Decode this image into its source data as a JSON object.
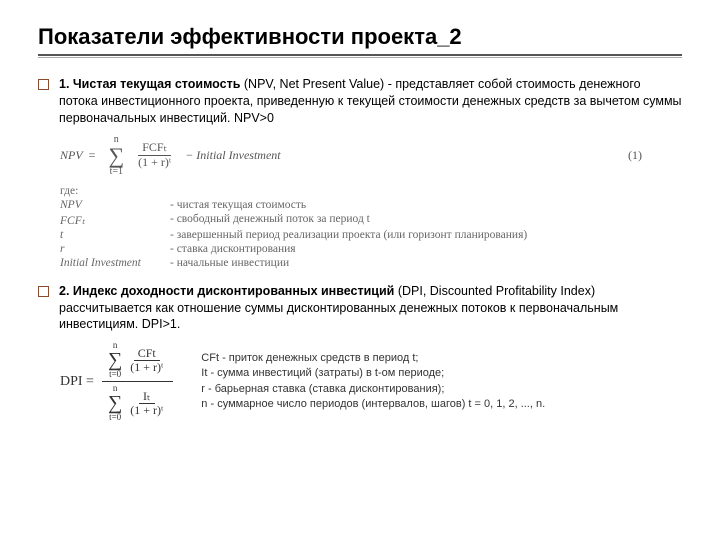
{
  "title": "Показатели эффективности проекта_2",
  "section1": {
    "lead": "1. Чистая текущая стоимость",
    "paren": " (NPV, Net Present Value) - представляет собой стоимость денежного потока инвестиционного проекта, приведенную к текущей стоимости денежных средств за вычетом суммы первоначальных инвестиций. NPV>0",
    "formula": {
      "lhs": "NPV",
      "sum_top": "n",
      "sum_bot": "t=1",
      "frac_num": "FCFₜ",
      "frac_den": "(1 + r)ᵗ",
      "tail": " − Initial Investment",
      "eqnum": "(1)"
    },
    "legend_header": "где:",
    "legend": [
      {
        "k": "NPV",
        "v": " - чистая текущая стоимость"
      },
      {
        "k": "FCFₜ",
        "v": " - свободный денежный поток за период t"
      },
      {
        "k": "t",
        "v": " - завершенный период реализации проекта (или горизонт планирования)"
      },
      {
        "k": "r",
        "v": " - ставка дисконтирования"
      },
      {
        "k": "Initial Investment",
        "v": " - начальные инвестиции"
      }
    ]
  },
  "section2": {
    "lead": "2. Индекс доходности дисконтированных инвестиций",
    "paren": " (DPI, Discounted Profitability Index) рассчитывается как отношение суммы дисконтированных денежных потоков к первоначальным инвестициям. DPI>1.",
    "formula": {
      "lhs": "DPI = ",
      "top": {
        "sum_top": "n",
        "sum_bot": "t=0",
        "frac_num": "CFt",
        "frac_den": "(1 + r)ᵗ"
      },
      "bot": {
        "sum_top": "n",
        "sum_bot": "t=0",
        "frac_num": "Iₜ",
        "frac_den": "(1 + r)ᵗ"
      }
    },
    "legend": [
      "CFt - приток денежных средств в период t;",
      "It - сумма инвестиций (затраты) в t-ом периоде;",
      "r - барьерная ставка (ставка дисконтирования);",
      "n - суммарное число периодов (интервалов, шагов) t = 0, 1, 2, ..., n."
    ]
  }
}
